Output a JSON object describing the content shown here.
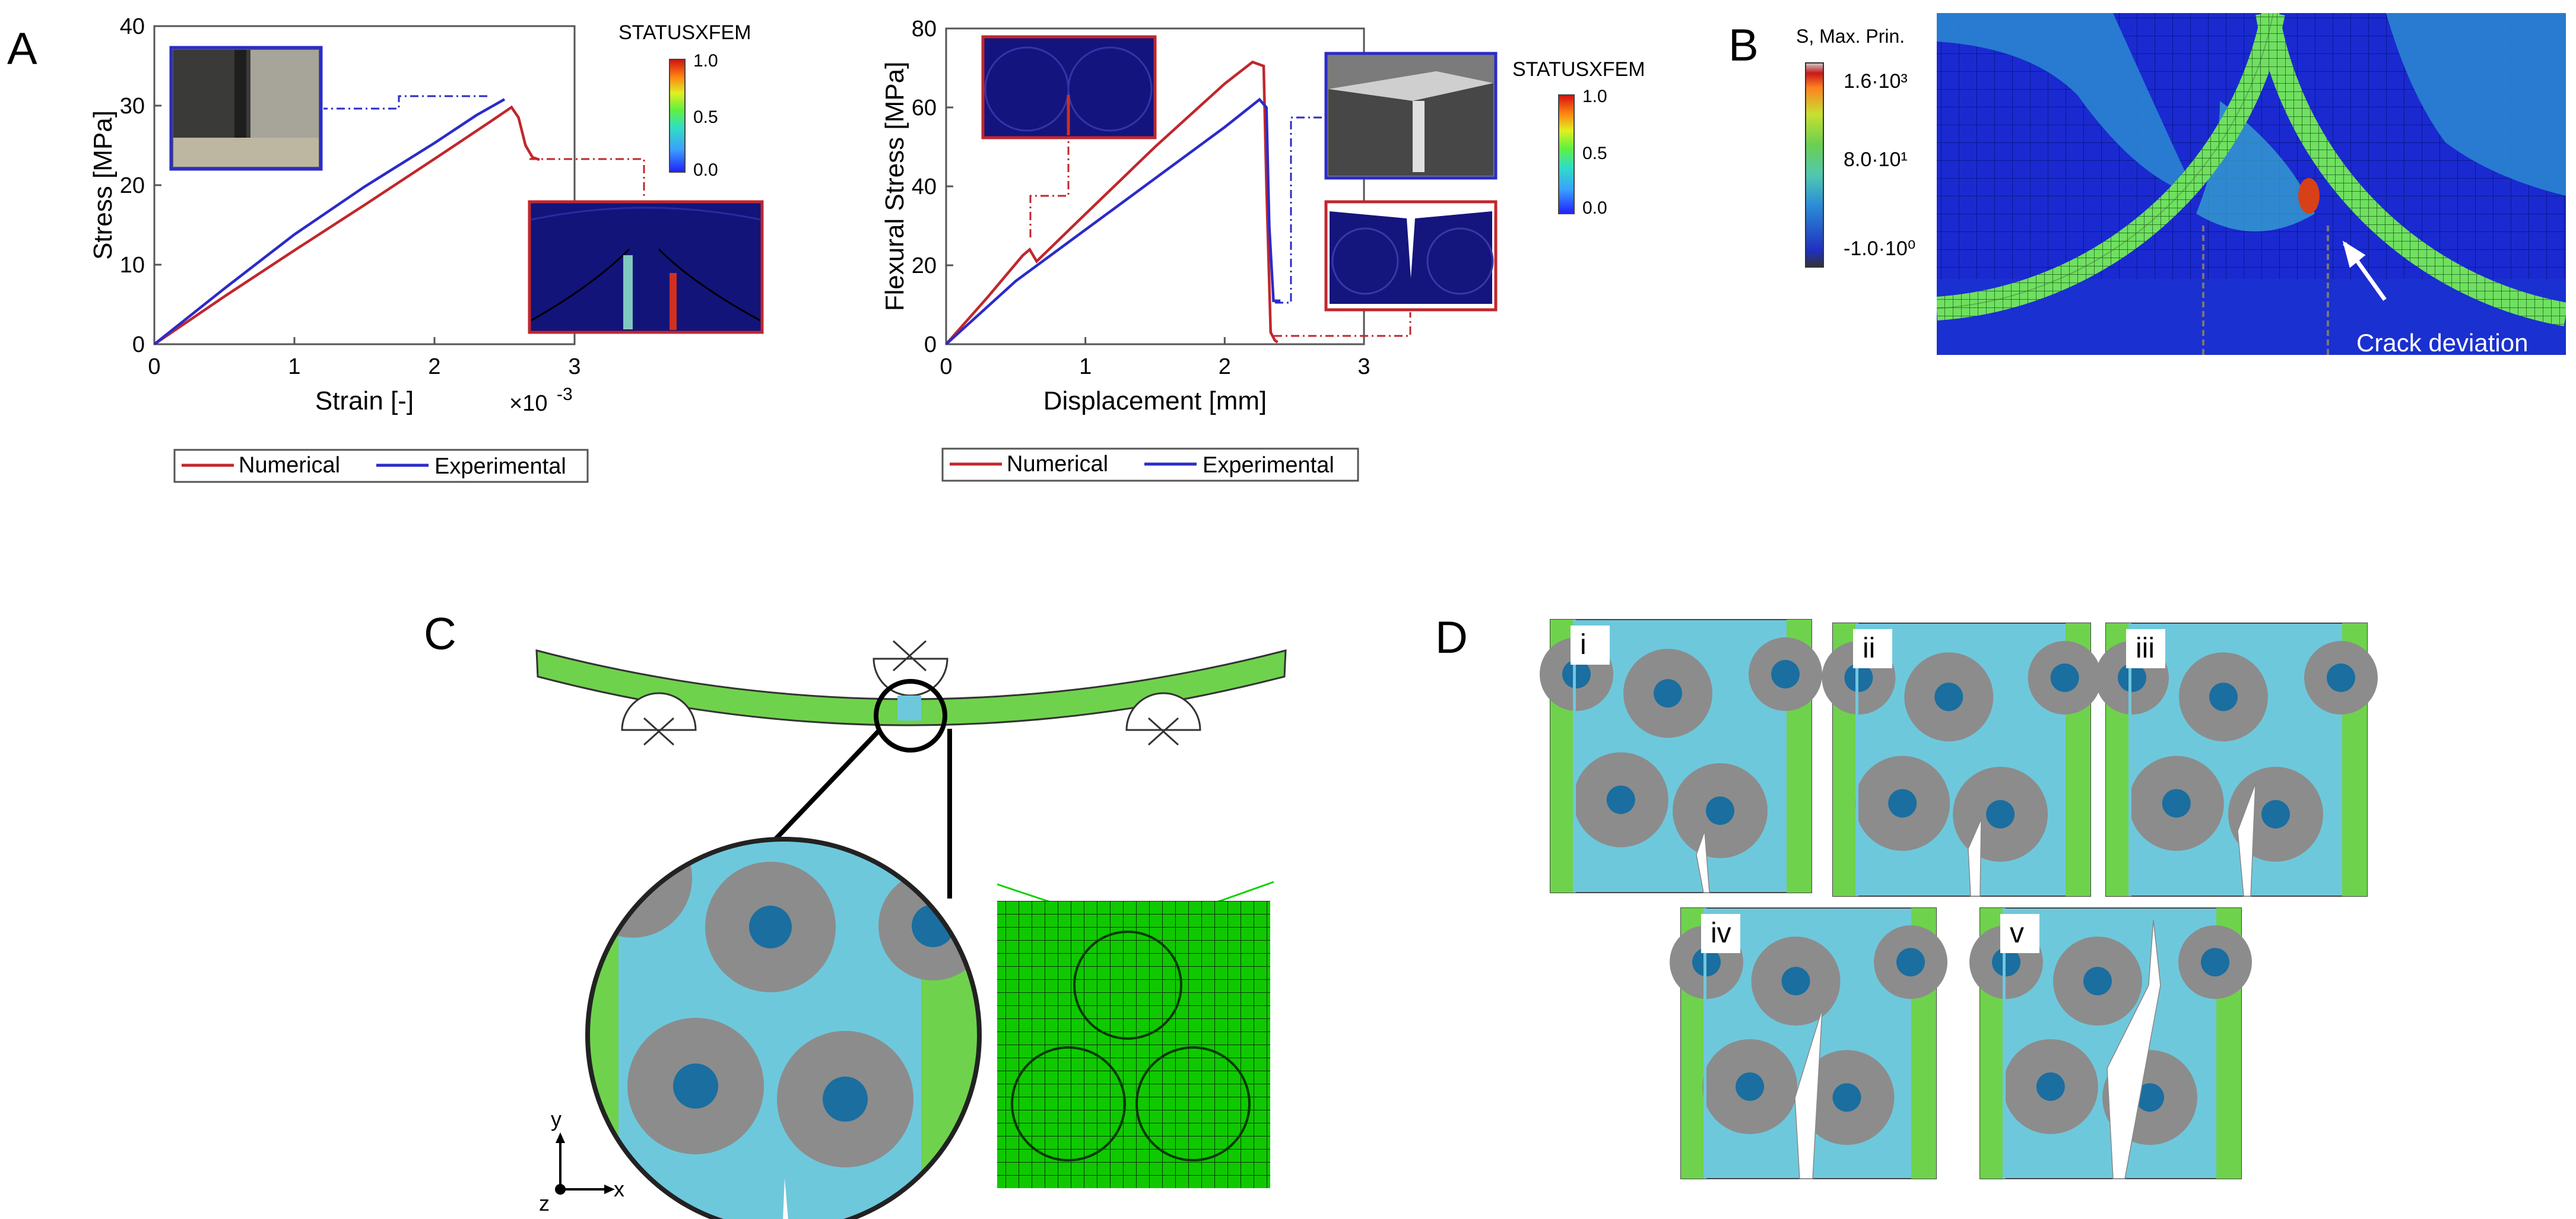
{
  "panel_labels": {
    "a": "A",
    "b": "B",
    "c": "C",
    "d": "D"
  },
  "colors": {
    "numerical": "#c0272d",
    "experimental": "#2b2bc8",
    "matrix": "#6ec8dc",
    "fiber_outer": "#8c8c8c",
    "fiber_inner": "#1a6ea0",
    "beam_green": "#6fd24c",
    "mesh_green": "#10d000",
    "mesh_bg": "#0000c8"
  },
  "chart_data": [
    {
      "type": "line",
      "id": "tensile",
      "title": "",
      "xlabel": "Strain [-]",
      "x_exponent_label": "×10",
      "x_exponent": "-3",
      "ylabel": "Stress [MPa]",
      "xlim": [
        0,
        3
      ],
      "ylim": [
        0,
        40
      ],
      "xticks": [
        0,
        1,
        2,
        3
      ],
      "yticks": [
        0,
        10,
        20,
        30,
        40
      ],
      "xtick_labels": [
        "0",
        "1",
        "2",
        "3"
      ],
      "ytick_labels": [
        "0",
        "10",
        "20",
        "30",
        "40"
      ],
      "legend": [
        "Numerical",
        "Experimental"
      ],
      "colorbar_title": "STATUSXFEM",
      "colorbar_labels": [
        "1.0",
        "0.5",
        "0.0"
      ],
      "series": [
        {
          "name": "Numerical",
          "x": [
            0,
            0.5,
            1.0,
            1.5,
            2.0,
            2.4,
            2.55,
            2.6,
            2.65,
            2.7,
            2.75
          ],
          "y": [
            0,
            6,
            11.8,
            17.5,
            23.3,
            28,
            29.8,
            28.5,
            25,
            23.5,
            23.2
          ]
        },
        {
          "name": "Experimental",
          "x": [
            0,
            0.5,
            1.0,
            1.5,
            2.0,
            2.3,
            2.5
          ],
          "y": [
            0,
            7,
            13.8,
            19.8,
            25.3,
            28.8,
            30.8
          ]
        }
      ]
    },
    {
      "type": "line",
      "id": "flexural",
      "title": "",
      "xlabel": "Displacement [mm]",
      "ylabel": "Flexural Stress [MPa]",
      "xlim": [
        0,
        3
      ],
      "ylim": [
        0,
        80
      ],
      "xticks": [
        0,
        1,
        2,
        3
      ],
      "yticks": [
        0,
        20,
        40,
        60,
        80
      ],
      "xtick_labels": [
        "0",
        "1",
        "2",
        "3"
      ],
      "ytick_labels": [
        "0",
        "20",
        "40",
        "60",
        "80"
      ],
      "legend": [
        "Numerical",
        "Experimental"
      ],
      "colorbar_title": "STATUSXFEM",
      "colorbar_labels": [
        "1.0",
        "0.5",
        "0.0"
      ],
      "series": [
        {
          "name": "Numerical",
          "x": [
            0,
            0.3,
            0.55,
            0.6,
            0.65,
            1.0,
            1.5,
            2.0,
            2.2,
            2.28,
            2.3,
            2.33,
            2.36,
            2.38
          ],
          "y": [
            0,
            12,
            22.5,
            24,
            21,
            33,
            50,
            66,
            71.5,
            70.5,
            40,
            3,
            1,
            0.5
          ]
        },
        {
          "name": "Experimental",
          "x": [
            0,
            0.5,
            1.0,
            1.5,
            2.0,
            2.25,
            2.3,
            2.32,
            2.35,
            2.4
          ],
          "y": [
            0,
            16,
            29,
            42,
            55,
            62,
            60,
            30,
            11,
            11
          ]
        }
      ]
    }
  ],
  "panel_b": {
    "legend_title": "S, Max. Prin.",
    "legend_labels": [
      "1.6·10³",
      "8.0·10¹",
      "-1.0·10⁰"
    ],
    "annotation": "Crack deviation"
  },
  "panel_c": {
    "axis_y": "y",
    "axis_x": "x",
    "axis_z": "z"
  },
  "panel_d": {
    "stages": [
      "i",
      "ii",
      "iii",
      "iv",
      "v"
    ]
  }
}
